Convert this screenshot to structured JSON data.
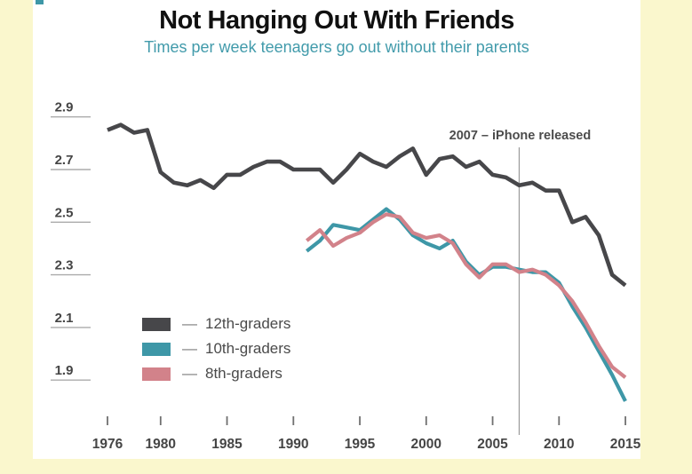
{
  "header": {
    "title": "Not Hanging Out With Friends",
    "subtitle": "Times per week teenagers go out without their parents",
    "subtitle_color": "#429BAB"
  },
  "annotation": {
    "text": "2007 – iPhone released",
    "year": 2007
  },
  "legend": {
    "dash": "—",
    "items": [
      {
        "label": "12th-graders",
        "color": "#47474A"
      },
      {
        "label": "10th-graders",
        "color": "#3E97A7"
      },
      {
        "label": "8th-graders",
        "color": "#D2828A"
      }
    ]
  },
  "chart_data": {
    "type": "line",
    "title": "Not Hanging Out With Friends",
    "subtitle": "Times per week teenagers go out without their parents",
    "xlabel": "",
    "ylabel": "Times per week",
    "xlim": [
      1976,
      2015
    ],
    "ylim": [
      1.8,
      2.95
    ],
    "grid": false,
    "legend_position": "lower-left",
    "x_ticks": [
      1976,
      1980,
      1985,
      1990,
      1995,
      2000,
      2005,
      2010,
      2015
    ],
    "y_ticks": [
      2.9,
      2.7,
      2.5,
      2.3,
      2.1,
      1.9
    ],
    "series": [
      {
        "name": "12th-graders",
        "color": "#47474A",
        "stroke_width": 4.6,
        "start_year": 1976,
        "values": [
          2.85,
          2.87,
          2.84,
          2.85,
          2.69,
          2.65,
          2.64,
          2.66,
          2.63,
          2.68,
          2.68,
          2.71,
          2.73,
          2.73,
          2.7,
          2.7,
          2.7,
          2.65,
          2.7,
          2.76,
          2.73,
          2.71,
          2.75,
          2.78,
          2.68,
          2.74,
          2.75,
          2.71,
          2.73,
          2.68,
          2.67,
          2.64,
          2.65,
          2.62,
          2.62,
          2.5,
          2.52,
          2.45,
          2.3,
          2.26
        ]
      },
      {
        "name": "10th-graders",
        "color": "#3E97A7",
        "stroke_width": 4.2,
        "start_year": 1991,
        "values": [
          2.39,
          2.43,
          2.49,
          2.48,
          2.47,
          2.51,
          2.55,
          2.51,
          2.45,
          2.42,
          2.4,
          2.43,
          2.35,
          2.3,
          2.33,
          2.33,
          2.32,
          2.31,
          2.31,
          2.27,
          2.18,
          2.1,
          2.01,
          1.92,
          1.82
        ]
      },
      {
        "name": "8th-graders",
        "color": "#D2828A",
        "stroke_width": 4.2,
        "start_year": 1991,
        "values": [
          2.43,
          2.47,
          2.41,
          2.44,
          2.46,
          2.5,
          2.53,
          2.52,
          2.46,
          2.44,
          2.45,
          2.42,
          2.34,
          2.29,
          2.34,
          2.34,
          2.31,
          2.32,
          2.3,
          2.26,
          2.2,
          2.12,
          2.03,
          1.95,
          1.91
        ]
      }
    ]
  }
}
